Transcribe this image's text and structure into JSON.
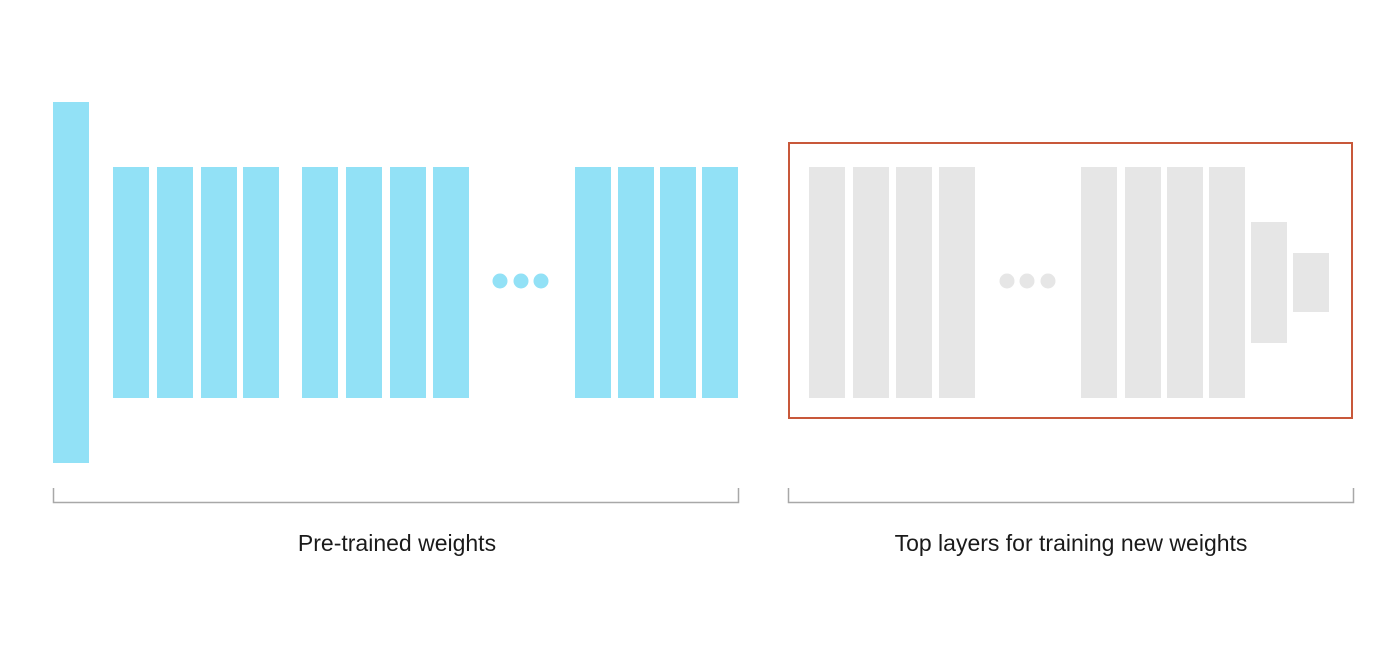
{
  "colors": {
    "pretrained_fill": "#92e1f6",
    "top_layer_fill": "#e6e6e6",
    "box_stroke": "#c8583a",
    "bracket_stroke": "#a8a8a8"
  },
  "labels": {
    "pretrained": "Pre-trained weights",
    "top_layers": "Top layers for training new weights"
  }
}
